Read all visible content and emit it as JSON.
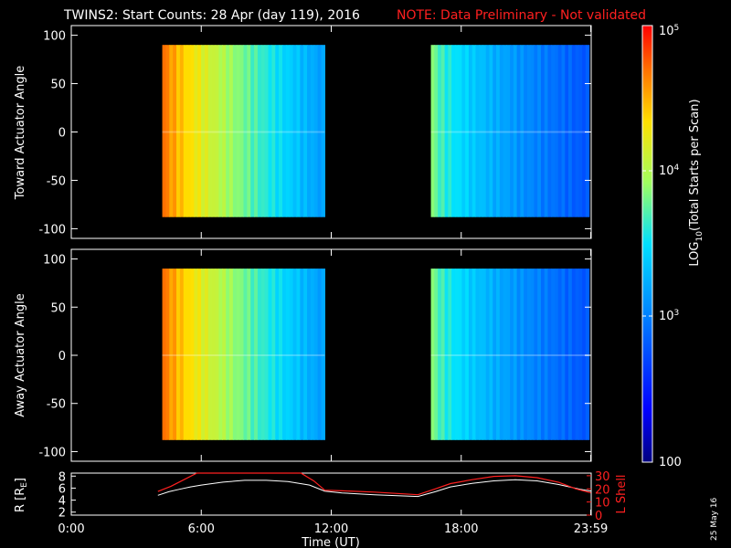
{
  "header": {
    "title": "TWINS2: Start Counts: 28 Apr (day 119), 2016",
    "note": "NOTE: Data Preliminary - Not validated",
    "note_color": "#ff2020"
  },
  "footer": {
    "date_stamp": "25 May 16"
  },
  "chart_data": [
    {
      "type": "heatmap",
      "title": "TWINS2: Start Counts: 28 Apr (day 119), 2016",
      "xlabel": "Time (UT)",
      "ylabel": "Toward Actuator Angle",
      "xlim_hours": [
        0,
        24
      ],
      "ylim": [
        -110,
        110
      ],
      "yticks": [
        "100",
        "50",
        "0",
        "-50",
        "-100"
      ],
      "yticks_values": [
        100,
        50,
        0,
        -50,
        -100
      ],
      "y_extent": [
        -88,
        90
      ],
      "data_blocks": [
        {
          "start_hour": 4.2,
          "end_hour": 11.7
        },
        {
          "start_hour": 16.6,
          "end_hour": 23.9
        }
      ],
      "colorbar": {
        "label": "LOG10(Total Starts per Scan)",
        "scale": "log",
        "range": [
          100,
          100000
        ],
        "ticks": [
          "10^5",
          "10^4",
          "10^3",
          "100"
        ]
      }
    },
    {
      "type": "heatmap",
      "ylabel": "Away Actuator Angle",
      "xlim_hours": [
        0,
        24
      ],
      "ylim": [
        -110,
        110
      ],
      "yticks": [
        "100",
        "50",
        "0",
        "-50",
        "-100"
      ],
      "yticks_values": [
        100,
        50,
        0,
        -50,
        -100
      ],
      "y_extent": [
        -88,
        90
      ],
      "data_blocks": [
        {
          "start_hour": 4.2,
          "end_hour": 11.7
        },
        {
          "start_hour": 16.6,
          "end_hour": 23.9
        }
      ]
    },
    {
      "type": "line",
      "xlabel": "Time (UT)",
      "ylabel_left": "R [RE]",
      "ylabel_right": "L Shell",
      "xticks": [
        "0:00",
        "6:00",
        "12:00",
        "18:00",
        "23:59"
      ],
      "xticks_hours": [
        0,
        6,
        12,
        18,
        23.98
      ],
      "yticks_left": [
        "8",
        "6",
        "4",
        "2"
      ],
      "yticks_left_values": [
        8,
        6,
        4,
        2
      ],
      "yticks_right": [
        "30",
        "20",
        "10",
        "0"
      ],
      "yticks_right_values": [
        30,
        20,
        10,
        0
      ],
      "ylim_left": [
        1.5,
        8.5
      ],
      "ylim_right": [
        0,
        32
      ],
      "series": [
        {
          "name": "R",
          "color": "#ffffff",
          "x": [
            4.0,
            4.5,
            5.0,
            5.5,
            6.0,
            7.0,
            8.0,
            9.0,
            10.0,
            11.0,
            11.7,
            12.5,
            14,
            16,
            16.8,
            17.5,
            18.5,
            19.5,
            20.5,
            21.5,
            22.5,
            23.5,
            24
          ],
          "y": [
            4.8,
            5.4,
            5.8,
            6.2,
            6.5,
            7.0,
            7.3,
            7.3,
            7.1,
            6.5,
            5.5,
            5.2,
            4.9,
            4.6,
            5.4,
            6.2,
            6.8,
            7.2,
            7.4,
            7.2,
            6.6,
            5.8,
            5.5
          ]
        },
        {
          "name": "L Shell",
          "color": "#ff2020",
          "x": [
            4.0,
            4.6,
            5.2,
            5.8,
            10.6,
            11.2,
            11.7,
            12.5,
            14.0,
            16.0,
            16.8,
            17.5,
            18.5,
            19.5,
            20.5,
            21.5,
            22.5,
            23.3,
            23.98
          ],
          "y": [
            18,
            22,
            27,
            32,
            32,
            26,
            19,
            18.5,
            17.5,
            15.5,
            20,
            24,
            27,
            29.5,
            30,
            28.5,
            25,
            20,
            17
          ]
        }
      ]
    }
  ]
}
